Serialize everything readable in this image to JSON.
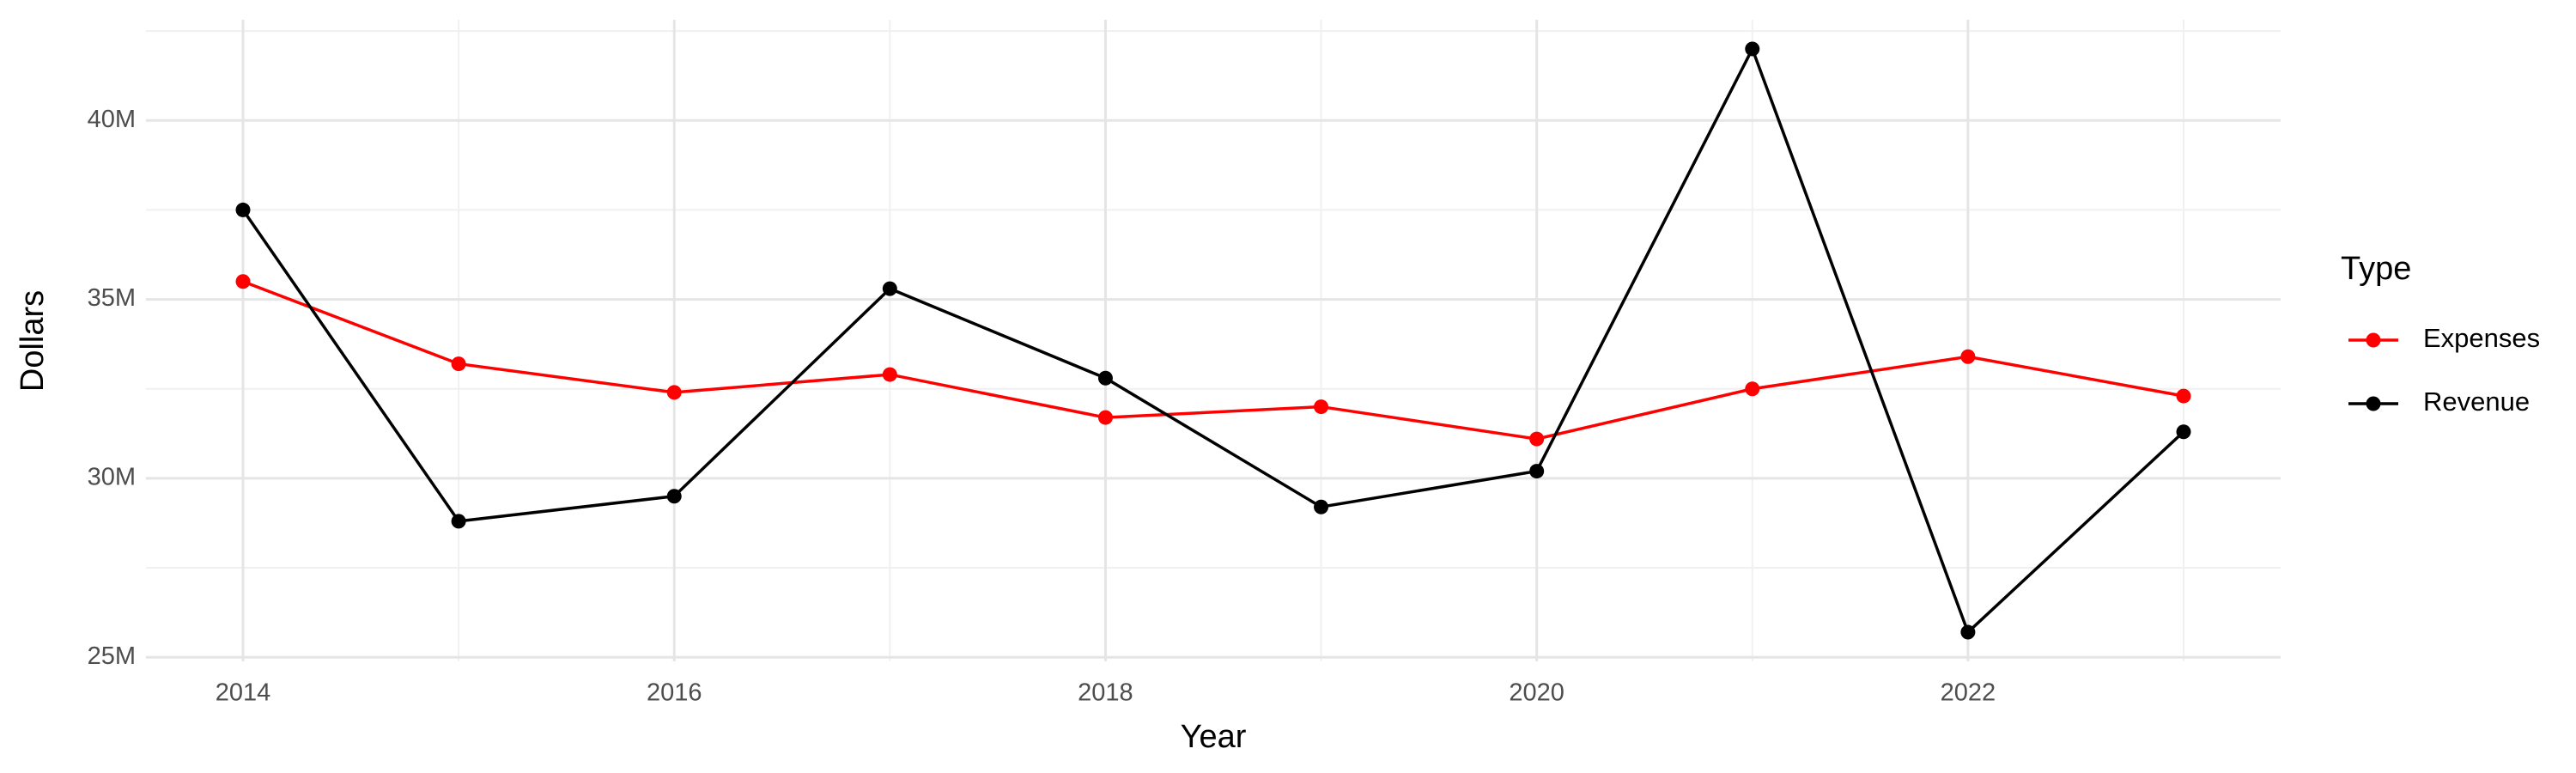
{
  "chart_data": {
    "type": "line",
    "x_label": "Year",
    "y_label": "Dollars",
    "legend_title": "Type",
    "x": [
      2014,
      2015,
      2016,
      2017,
      2018,
      2019,
      2020,
      2021,
      2022,
      2023
    ],
    "series": [
      {
        "name": "Expenses",
        "color": "#ff0000",
        "values": [
          35500000,
          33200000,
          32400000,
          32900000,
          31700000,
          32000000,
          31100000,
          32500000,
          33400000,
          32300000
        ]
      },
      {
        "name": "Revenue",
        "color": "#000000",
        "values": [
          37500000,
          28800000,
          29500000,
          35300000,
          32800000,
          29200000,
          30200000,
          42000000,
          25700000,
          31300000
        ]
      }
    ],
    "xlim": [
      2013.55,
      2023.45
    ],
    "xticks": [
      2014,
      2016,
      2018,
      2020,
      2022
    ],
    "ylim": [
      24885000,
      42815000
    ],
    "yticks": [
      {
        "value": 25000000,
        "label": "25M"
      },
      {
        "value": 30000000,
        "label": "30M"
      },
      {
        "value": 35000000,
        "label": "35M"
      },
      {
        "value": 40000000,
        "label": "40M"
      }
    ],
    "grid": true,
    "legend_position": "right"
  }
}
